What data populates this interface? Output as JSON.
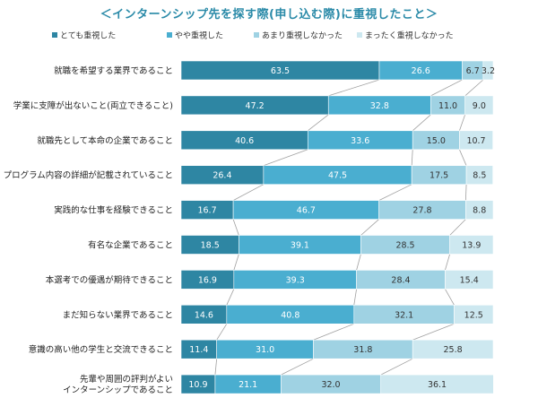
{
  "chart_data": {
    "type": "bar",
    "title": "＜インターンシップ先を探す際(申し込む際)に重視したこと＞",
    "stacked": true,
    "orientation": "horizontal",
    "xlim": [
      0,
      100
    ],
    "legend_position": "top",
    "categories": [
      [
        "就職を希望する業界であること"
      ],
      [
        "学業に支障が出ないこと(両立できること)"
      ],
      [
        "就職先として本命の企業であること"
      ],
      [
        "プログラム内容の詳細が記載されていること"
      ],
      [
        "実践的な仕事を経験できること"
      ],
      [
        "有名な企業であること"
      ],
      [
        "本選考での優遇が期待できること"
      ],
      [
        "まだ知らない業界であること"
      ],
      [
        "意識の高い他の学生と交流できること"
      ],
      [
        "先輩や周囲の評判がよい",
        "インターンシップであること"
      ]
    ],
    "series": [
      {
        "name": "とても重視した",
        "color": "#2e86a3",
        "text_color": "#ffffff",
        "values": [
          63.5,
          47.2,
          40.6,
          26.4,
          16.7,
          18.5,
          16.9,
          14.6,
          11.4,
          10.9
        ]
      },
      {
        "name": "やや重視した",
        "color": "#4aaed0",
        "text_color": "#ffffff",
        "values": [
          26.6,
          32.8,
          33.6,
          47.5,
          46.7,
          39.1,
          39.3,
          40.8,
          31.0,
          21.1
        ]
      },
      {
        "name": "あまり重視しなかった",
        "color": "#9fd2e3",
        "text_color": "#333333",
        "values": [
          6.7,
          11.0,
          15.0,
          17.5,
          27.8,
          28.5,
          28.4,
          32.1,
          31.8,
          32.0
        ]
      },
      {
        "name": "まったく重視しなかった",
        "color": "#cde8f0",
        "text_color": "#333333",
        "values": [
          3.2,
          9.0,
          10.7,
          8.5,
          8.8,
          13.9,
          15.4,
          12.5,
          25.8,
          36.1
        ]
      }
    ]
  }
}
